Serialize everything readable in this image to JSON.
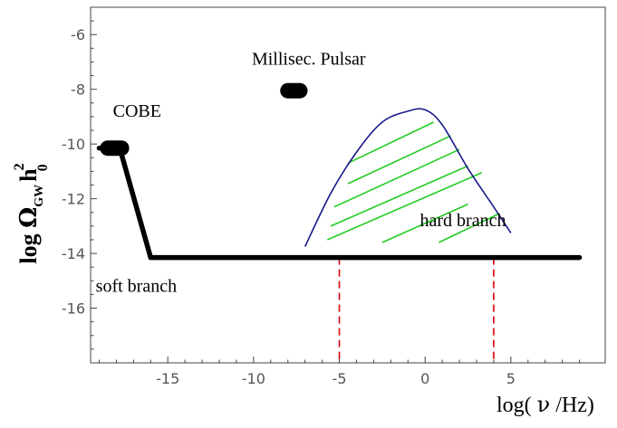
{
  "chart_data": {
    "type": "line",
    "xlabel_prefix": "log( ",
    "xlabel_nu": "ν",
    "xlabel_suffix": " /Hz)",
    "ylabel_log": "log",
    "ylabel_omega": "Ω",
    "ylabel_sub": "GW",
    "ylabel_h": "h",
    "ylabel_sup": "2",
    "ylabel_sub2": "0",
    "xlim": [
      -19.5,
      10.5
    ],
    "ylim": [
      -18,
      -5
    ],
    "x_ticks": [
      {
        "value": -15,
        "label": "-15"
      },
      {
        "value": -10,
        "label": "-10"
      },
      {
        "value": -5,
        "label": "-5"
      },
      {
        "value": 0,
        "label": "0"
      },
      {
        "value": 5,
        "label": "5"
      }
    ],
    "y_ticks": [
      {
        "value": -6,
        "label": "-6"
      },
      {
        "value": -8,
        "label": "-8"
      },
      {
        "value": -10,
        "label": "-10"
      },
      {
        "value": -12,
        "label": "-12"
      },
      {
        "value": -14,
        "label": "-14"
      },
      {
        "value": -16,
        "label": "-16"
      }
    ],
    "series": [
      {
        "label": "soft branch",
        "color": "#000000",
        "x": [
          -19,
          -17.8,
          -16,
          9
        ],
        "y": [
          -10.15,
          -10.15,
          -14.15,
          -14.15
        ]
      },
      {
        "label": "hard branch",
        "color": "#1a1a8c",
        "x": [
          -7,
          -5.5,
          -4,
          -2.5,
          -1,
          0,
          1,
          2.5,
          4,
          5
        ],
        "y": [
          -13.75,
          -11.8,
          -10.3,
          -9.2,
          -8.8,
          -8.75,
          -9.3,
          -10.9,
          -12.3,
          -13.25
        ]
      }
    ],
    "hatch": {
      "color": "#22cc22",
      "lines": [
        {
          "x": [
            -4.5,
            0.5
          ],
          "y": [
            -10.7,
            -9.2
          ]
        },
        {
          "x": [
            -4.5,
            1.5
          ],
          "y": [
            -11.45,
            -9.7
          ]
        },
        {
          "x": [
            -5.3,
            2
          ],
          "y": [
            -12.3,
            -10.2
          ]
        },
        {
          "x": [
            -5.5,
            2.5
          ],
          "y": [
            -13.0,
            -10.8
          ]
        },
        {
          "x": [
            -5.7,
            3.3
          ],
          "y": [
            -13.5,
            -11.05
          ]
        },
        {
          "x": [
            -2.5,
            2.5
          ],
          "y": [
            -13.6,
            -12.2
          ]
        },
        {
          "x": [
            0.8,
            4.3
          ],
          "y": [
            -13.6,
            -12.55
          ]
        }
      ]
    },
    "bounds": {
      "color": "#dd0000",
      "lines": [
        {
          "x": -5,
          "y": [
            -14.15,
            -18
          ]
        },
        {
          "x": 4,
          "y": [
            -14.15,
            -18
          ]
        }
      ]
    },
    "bounds_markers": [
      {
        "label": "COBE",
        "x": [
          -18.5,
          -17.7
        ],
        "y": -10.15
      },
      {
        "label": "Millisec. Pulsar",
        "x": [
          -8,
          -7.3
        ],
        "y": -8.05
      }
    ],
    "annotations": [
      {
        "text": "COBE",
        "x": -18.2,
        "y": -9.0
      },
      {
        "text": "Millisec. Pulsar",
        "x": -10.1,
        "y": -7.1
      },
      {
        "text": "soft branch",
        "x": -19.2,
        "y": -15.4
      },
      {
        "text": "hard branch",
        "x": -0.3,
        "y": -13.0
      }
    ]
  }
}
